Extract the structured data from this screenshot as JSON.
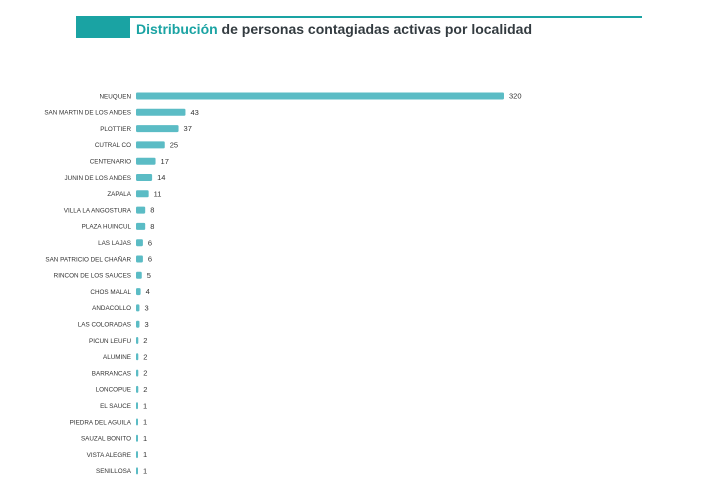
{
  "header": {
    "title_accent": "Distribución",
    "title_rest": " de personas contagiadas activas por localidad"
  },
  "colors": {
    "bar": "#5bbcc5",
    "accent": "#1aa3a3",
    "title_text": "#333b40"
  },
  "chart_data": {
    "type": "bar",
    "orientation": "horizontal",
    "title": "Distribución de personas contagiadas activas por localidad",
    "categories": [
      "NEUQUEN",
      "SAN MARTIN DE LOS ANDES",
      "PLOTTIER",
      "CUTRAL CO",
      "CENTENARIO",
      "JUNIN DE LOS ANDES",
      "ZAPALA",
      "VILLA LA ANGOSTURA",
      "PLAZA HUINCUL",
      "LAS LAJAS",
      "SAN PATRICIO DEL CHAÑAR",
      "RINCON DE LOS SAUCES",
      "CHOS MALAL",
      "ANDACOLLO",
      "LAS COLORADAS",
      "PICUN LEUFU",
      "ALUMINE",
      "BARRANCAS",
      "LONCOPUE",
      "EL SAUCE",
      "PIEDRA DEL AGUILA",
      "SAUZAL BONITO",
      "VISTA ALEGRE",
      "SENILLOSA"
    ],
    "values": [
      320,
      43,
      37,
      25,
      17,
      14,
      11,
      8,
      8,
      6,
      6,
      5,
      4,
      3,
      3,
      2,
      2,
      2,
      2,
      1,
      1,
      1,
      1,
      1
    ],
    "data_labels": [
      "320",
      "43",
      "37",
      "25",
      "17",
      "14",
      "11",
      "8",
      "8",
      "6",
      "6",
      "5",
      "4",
      "3",
      "3",
      "2",
      "2",
      "2",
      "2",
      "1",
      "1",
      "1",
      "1",
      "1"
    ],
    "xlim": [
      0,
      320
    ],
    "grid": false,
    "legend": "none"
  }
}
